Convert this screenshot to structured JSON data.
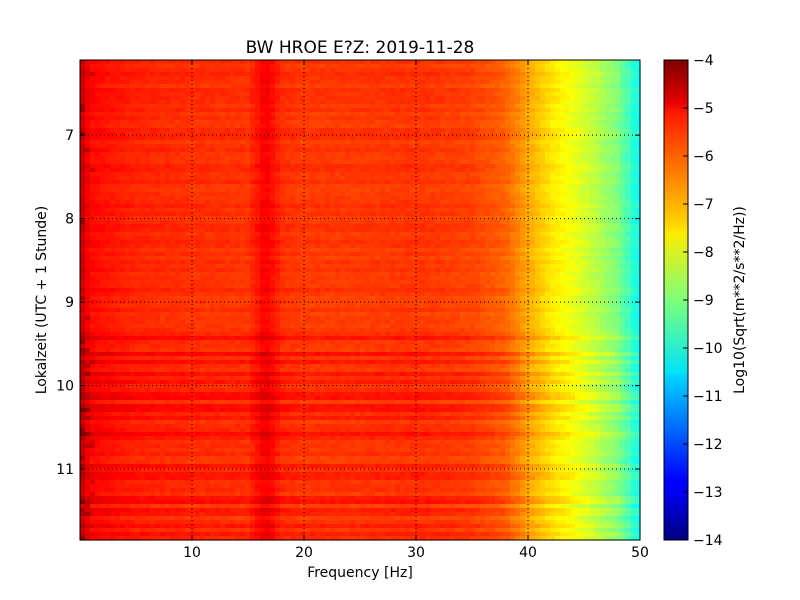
{
  "chart_data": {
    "type": "heatmap",
    "title": "BW HROE E?Z: 2019-11-28",
    "xlabel": "Frequency [Hz]",
    "ylabel": "Lokalzeit (UTC + 1 Stunde)",
    "xlim": [
      0,
      50
    ],
    "ylim": [
      6.1,
      11.85
    ],
    "y_inverted": true,
    "x_ticks": [
      {
        "value": 10,
        "label": "10"
      },
      {
        "value": 20,
        "label": "20"
      },
      {
        "value": 30,
        "label": "30"
      },
      {
        "value": 40,
        "label": "40"
      },
      {
        "value": 50,
        "label": "50"
      }
    ],
    "y_ticks": [
      {
        "value": 7,
        "label": "7"
      },
      {
        "value": 8,
        "label": "8"
      },
      {
        "value": 9,
        "label": "9"
      },
      {
        "value": 10,
        "label": "10"
      },
      {
        "value": 11,
        "label": "11"
      }
    ],
    "grid": true,
    "colormap": "jet",
    "colorbar": {
      "label": "Log10(Sqrt(m**2/s**2/Hz))",
      "range": [
        -14,
        -4
      ],
      "ticks": [
        {
          "value": -4,
          "label": "−4"
        },
        {
          "value": -5,
          "label": "−5"
        },
        {
          "value": -6,
          "label": "−6"
        },
        {
          "value": -7,
          "label": "−7"
        },
        {
          "value": -8,
          "label": "−8"
        },
        {
          "value": -9,
          "label": "−9"
        },
        {
          "value": -10,
          "label": "−10"
        },
        {
          "value": -11,
          "label": "−11"
        },
        {
          "value": -12,
          "label": "−12"
        },
        {
          "value": -13,
          "label": "−13"
        },
        {
          "value": -14,
          "label": "−14"
        }
      ]
    },
    "frequency_profile": {
      "frequency": [
        0,
        0.5,
        1,
        2,
        5,
        10,
        15,
        16.5,
        17,
        18,
        20,
        25,
        30,
        35,
        38,
        40,
        42,
        44,
        46,
        48,
        49,
        50
      ],
      "value": [
        -4.6,
        -5.0,
        -5.3,
        -5.4,
        -5.6,
        -5.7,
        -5.75,
        -5.2,
        -5.3,
        -5.7,
        -5.8,
        -5.8,
        -5.75,
        -5.9,
        -6.2,
        -6.9,
        -7.5,
        -7.9,
        -8.4,
        -9.0,
        -9.6,
        -10.2
      ]
    }
  }
}
